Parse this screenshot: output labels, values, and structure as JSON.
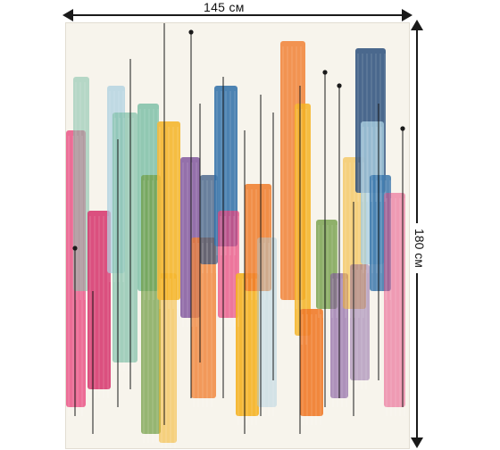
{
  "dimensions": {
    "width_label": "145 см",
    "height_label": "180 см"
  },
  "colors": {
    "canvas": "#f7f4ec",
    "ink": "#1a1a1a",
    "pink": "#e8407a",
    "magenta": "#d6336c",
    "orange": "#f07b2a",
    "yellow": "#f4b324",
    "teal": "#7fbfa8",
    "blue": "#2f6fa8",
    "navy": "#2c4f7c",
    "purple": "#7b4f9a",
    "green": "#6c9a3f",
    "lightblue": "#a6cde0"
  }
}
